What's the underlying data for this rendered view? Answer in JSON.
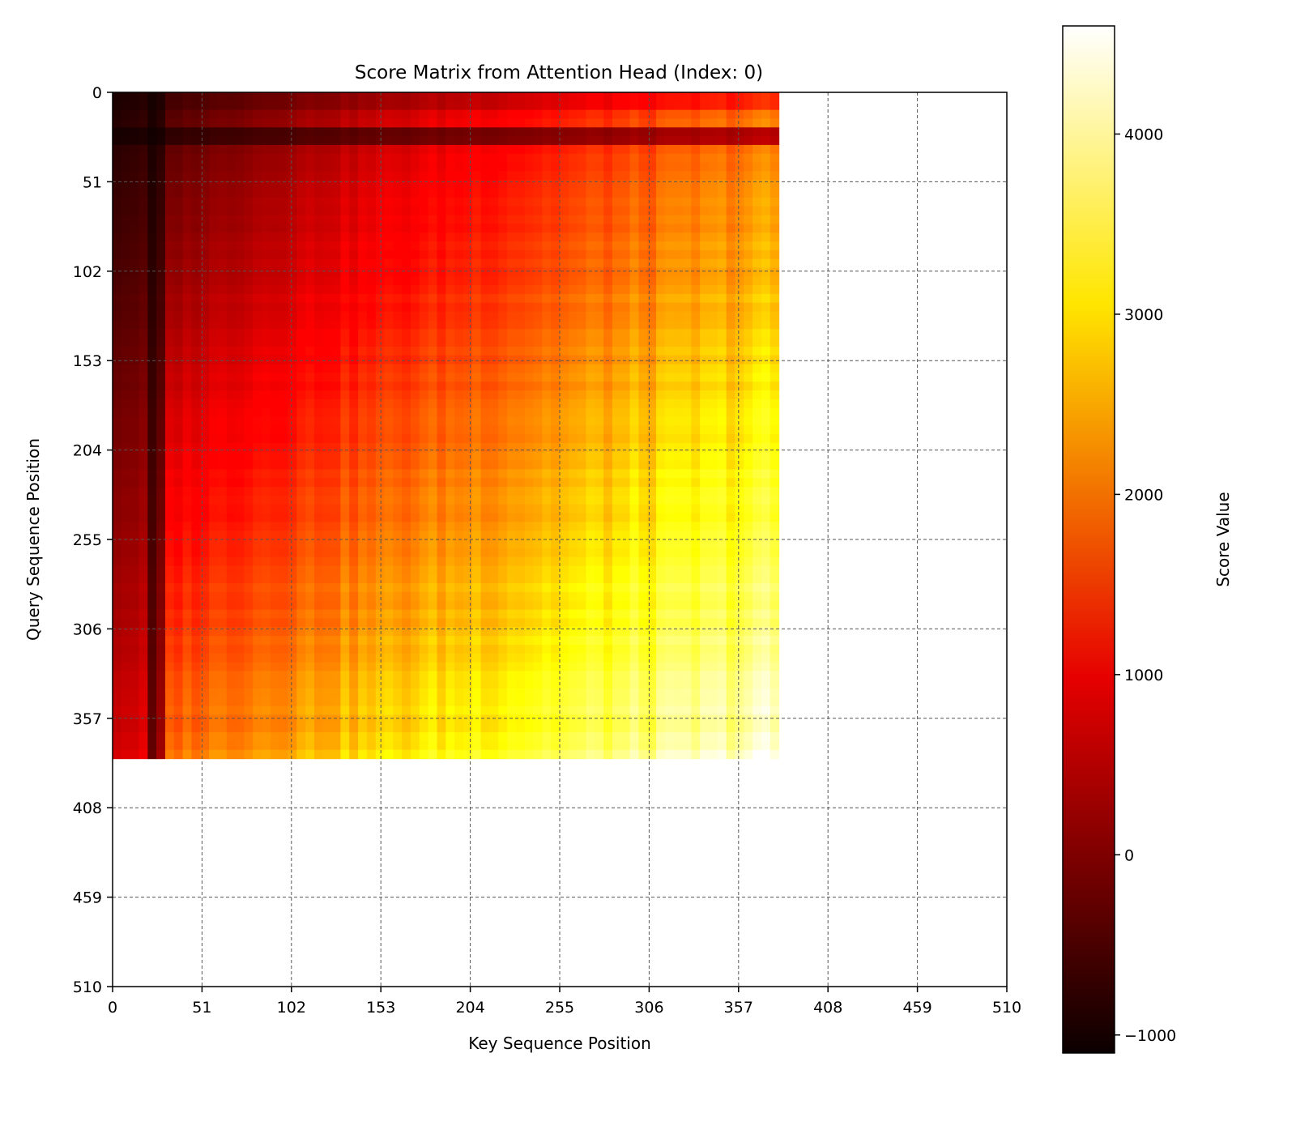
{
  "chart_data": {
    "type": "heatmap",
    "title": "Score Matrix from Attention Head (Index: 0)",
    "xlabel": "Key Sequence Position",
    "ylabel": "Query Sequence Position",
    "colorbar_label": "Score Value",
    "colormap": "hot",
    "x_ticks": [
      0,
      51,
      102,
      153,
      204,
      255,
      306,
      357,
      408,
      459,
      510
    ],
    "y_ticks": [
      0,
      51,
      102,
      153,
      204,
      255,
      306,
      357,
      408,
      459,
      510
    ],
    "x_tick_labels": [
      "0",
      "51",
      "102",
      "153",
      "204",
      "255",
      "306",
      "357",
      "408",
      "459",
      "510"
    ],
    "y_tick_labels": [
      "0",
      "51",
      "102",
      "153",
      "204",
      "255",
      "306",
      "357",
      "408",
      "459",
      "510"
    ],
    "xlim": [
      0,
      510
    ],
    "ylim": [
      510,
      0
    ],
    "valid_extent": {
      "key_end": 380,
      "query_end": 380
    },
    "colorbar_ticks": [
      4000,
      3000,
      2000,
      1000,
      0,
      -1000
    ],
    "colorbar_tick_labels": [
      "4000",
      "3000",
      "2000",
      "1000",
      "0",
      "−1000"
    ],
    "value_range": [
      -1100,
      4600
    ],
    "grid": true,
    "grid_style": "dashed",
    "masked_region_color": "#ffffff",
    "description_of_pattern": {
      "min_corner": "top-left",
      "max_corner": "bottom-right",
      "low_value_band_key_range": [
        20,
        30
      ],
      "low_value_band_query_range": [
        20,
        30
      ]
    }
  }
}
